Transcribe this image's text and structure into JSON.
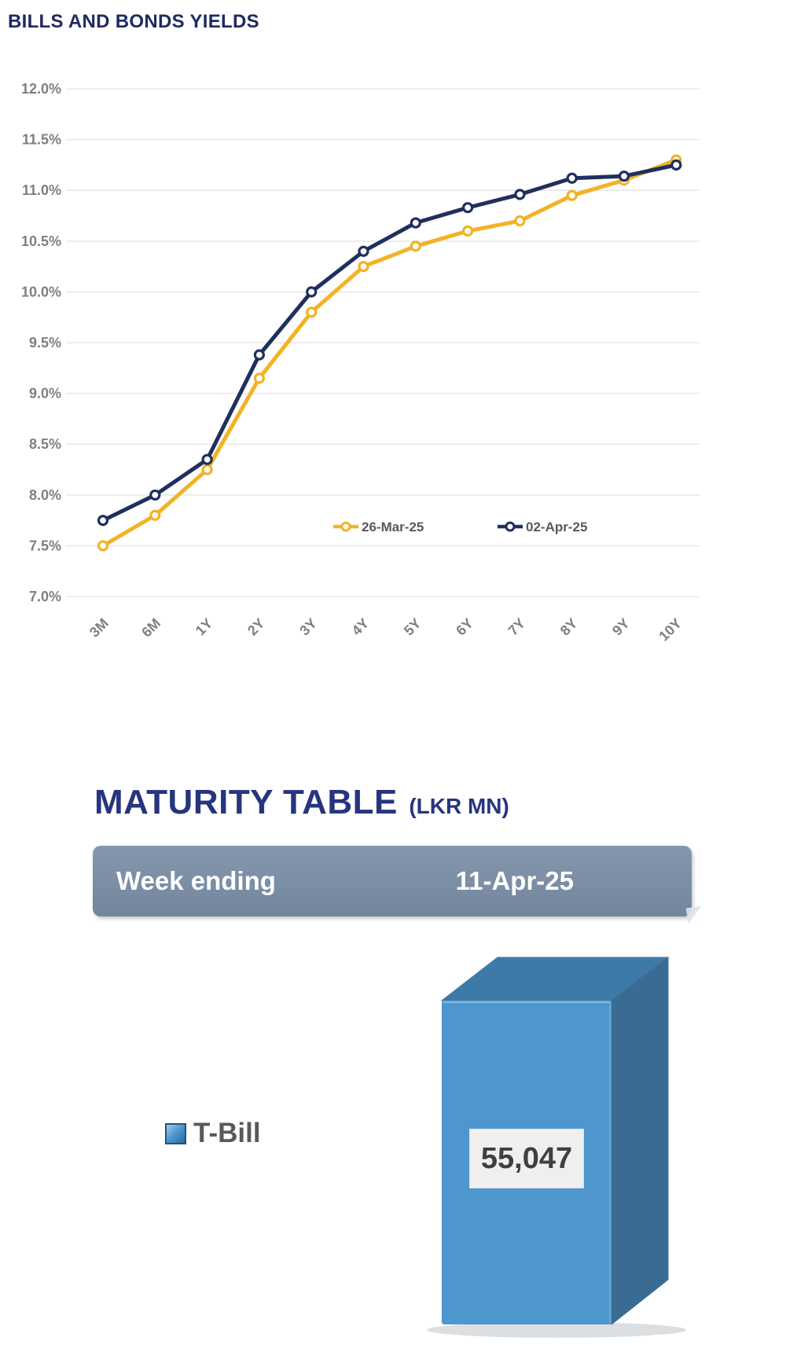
{
  "page_title": "BILLS AND BONDS YIELDS",
  "chart_data": [
    {
      "type": "line",
      "title": "BILLS AND BONDS YIELDS",
      "categories": [
        "3M",
        "6M",
        "1Y",
        "2Y",
        "3Y",
        "4Y",
        "5Y",
        "6Y",
        "7Y",
        "8Y",
        "9Y",
        "10Y"
      ],
      "series": [
        {
          "name": "26-Mar-25",
          "color": "#F2B324",
          "values": [
            7.5,
            7.8,
            8.25,
            9.15,
            9.8,
            10.25,
            10.45,
            10.6,
            10.7,
            10.95,
            11.1,
            11.3
          ]
        },
        {
          "name": "02-Apr-25",
          "color": "#1F2F5E",
          "values": [
            7.75,
            8.0,
            8.35,
            9.38,
            10.0,
            10.4,
            10.68,
            10.83,
            10.96,
            11.12,
            11.14,
            11.25
          ]
        }
      ],
      "ylim": [
        7.0,
        12.0
      ],
      "ytick_step": 0.5,
      "ytick_suffix": "%",
      "grid": true,
      "grid_color": "#E8E8E8",
      "axis_text_color": "#7F7F7F",
      "legend_position": "inside-bottom",
      "legend_text_color": "#595959",
      "marker": "open-circle"
    },
    {
      "type": "bar",
      "title": "MATURITY TABLE (LKR MN)",
      "categories": [
        "T-Bill"
      ],
      "values": [
        55047
      ],
      "value_labels": [
        "55,047"
      ],
      "style": "3d",
      "bar_colors": {
        "front": "#4E96CE",
        "side": "#3A6C93",
        "top": "#3D7AA7"
      }
    }
  ],
  "maturity_section": {
    "heading": "MATURITY TABLE",
    "heading_unit": "(LKR MN)",
    "heading_color": "#26357E",
    "week_ending_label": "Week ending",
    "week_ending_value": "11-Apr-25",
    "header_bar_color": "#7B8EA5",
    "legend_label": "T-Bill",
    "bar_value_label": "55,047"
  }
}
